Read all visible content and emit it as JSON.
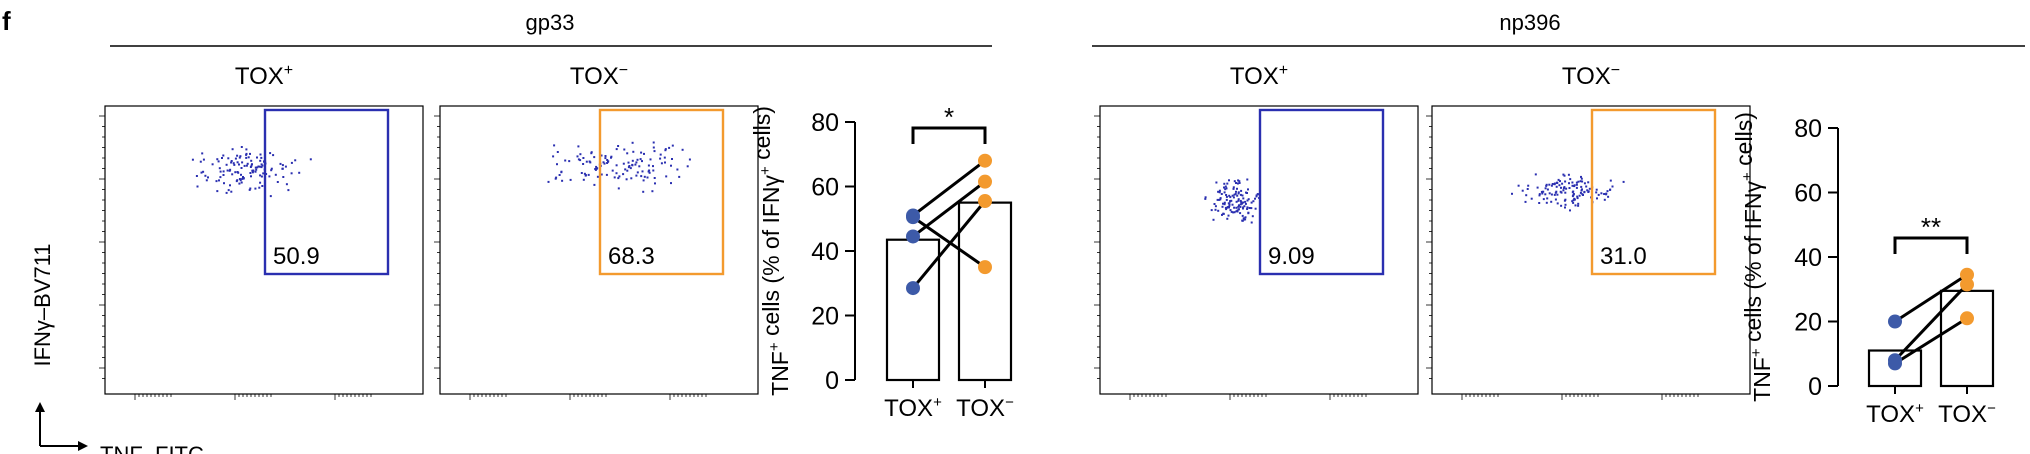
{
  "panel_label": "f",
  "axis_labels": {
    "flow_y": "IFNγ–BV711",
    "flow_x": "TNF–FITC"
  },
  "colors": {
    "tox_pos": "#2a2fb0",
    "tox_neg": "#f39a2e",
    "dot_pos": "#3d5aa8",
    "dot_neg": "#f39a2e"
  },
  "groups": [
    {
      "title": "gp33",
      "flow_plots": [
        {
          "label_base": "TOX",
          "label_sup": "+",
          "gate_value": "50.9",
          "gate_color": "tox_pos"
        },
        {
          "label_base": "TOX",
          "label_sup": "−",
          "gate_value": "68.3",
          "gate_color": "tox_neg"
        }
      ]
    },
    {
      "title": "np396",
      "flow_plots": [
        {
          "label_base": "TOX",
          "label_sup": "+",
          "gate_value": "9.09",
          "gate_color": "tox_pos"
        },
        {
          "label_base": "TOX",
          "label_sup": "−",
          "gate_value": "31.0",
          "gate_color": "tox_neg"
        }
      ]
    }
  ],
  "chart_data": [
    {
      "type": "bar",
      "group": "gp33",
      "categories": [
        "TOX+",
        "TOX−"
      ],
      "category_labels": [
        {
          "base": "TOX",
          "sup": "+"
        },
        {
          "base": "TOX",
          "sup": "−"
        }
      ],
      "ylabel": "TNF+ cells (% of IFNγ+ cells)",
      "ylim": [
        0,
        80
      ],
      "yticks": [
        0,
        20,
        40,
        60,
        80
      ],
      "bar_values": [
        43.5,
        55
      ],
      "paired_points": [
        [
          51,
          68
        ],
        [
          44.5,
          61.5
        ],
        [
          28.5,
          55.5
        ],
        [
          50.5,
          35
        ]
      ],
      "significance": "*"
    },
    {
      "type": "bar",
      "group": "np396",
      "categories": [
        "TOX+",
        "TOX−"
      ],
      "category_labels": [
        {
          "base": "TOX",
          "sup": "+"
        },
        {
          "base": "TOX",
          "sup": "−"
        }
      ],
      "ylabel": "TNF+ cells (% of IFNγ+ cells)",
      "ylim": [
        0,
        80
      ],
      "yticks": [
        0,
        20,
        40,
        60,
        80
      ],
      "bar_values": [
        11,
        29.5
      ],
      "paired_points": [
        [
          20,
          34.5
        ],
        [
          8,
          31.5
        ],
        [
          7,
          21
        ]
      ],
      "significance": "**"
    }
  ]
}
